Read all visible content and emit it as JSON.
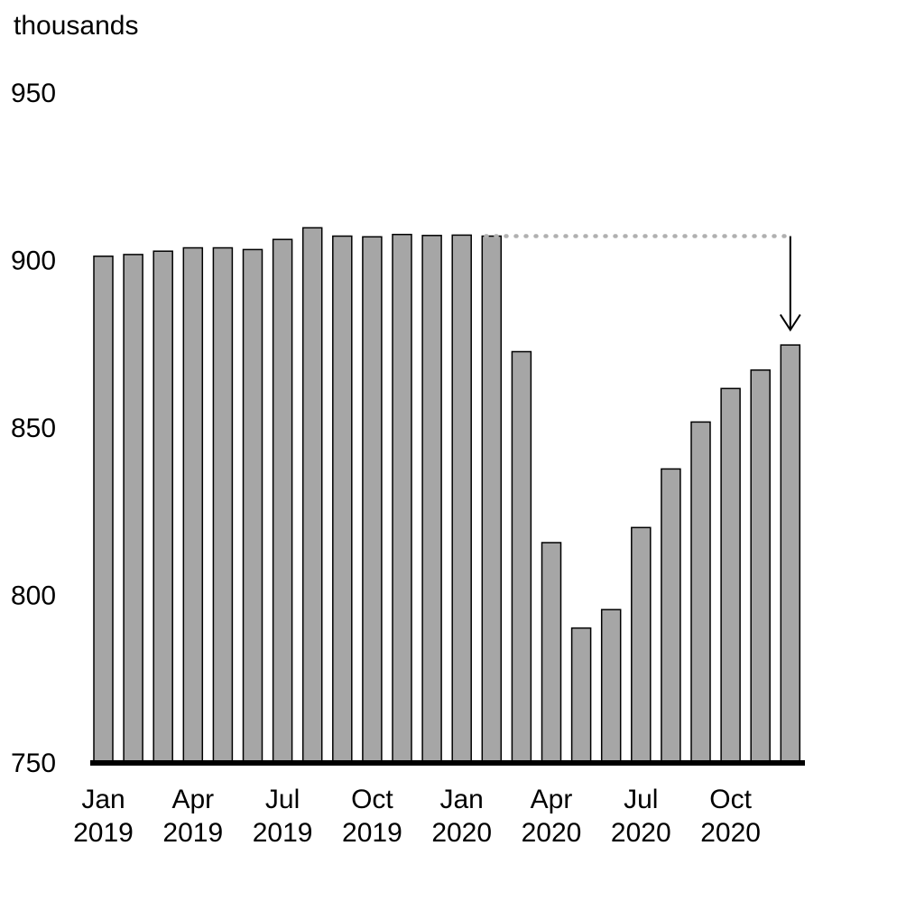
{
  "chart_data": {
    "type": "bar",
    "y_unit_label": "thousands",
    "ylim": [
      750,
      950
    ],
    "yticks": [
      950,
      900,
      850,
      800,
      750
    ],
    "x_tick_labels": [
      {
        "month": "Jan",
        "year": "2019",
        "index": 0
      },
      {
        "month": "Apr",
        "year": "2019",
        "index": 3
      },
      {
        "month": "Jul",
        "year": "2019",
        "index": 6
      },
      {
        "month": "Oct",
        "year": "2019",
        "index": 9
      },
      {
        "month": "Jan",
        "year": "2020",
        "index": 12
      },
      {
        "month": "Apr",
        "year": "2020",
        "index": 15
      },
      {
        "month": "Jul",
        "year": "2020",
        "index": 18
      },
      {
        "month": "Oct",
        "year": "2020",
        "index": 21
      }
    ],
    "categories": [
      "Jan 2019",
      "Feb 2019",
      "Mar 2019",
      "Apr 2019",
      "May 2019",
      "Jun 2019",
      "Jul 2019",
      "Aug 2019",
      "Sep 2019",
      "Oct 2019",
      "Nov 2019",
      "Dec 2019",
      "Jan 2020",
      "Feb 2020",
      "Mar 2020",
      "Apr 2020",
      "May 2020",
      "Jun 2020",
      "Jul 2020",
      "Aug 2020",
      "Sep 2020",
      "Oct 2020",
      "Nov 2020",
      "Dec 2020"
    ],
    "values": [
      901,
      901.5,
      902.5,
      903.5,
      903.5,
      903,
      906,
      909.5,
      907,
      906.8,
      907.5,
      907.2,
      907.3,
      907,
      872.5,
      815.5,
      790,
      795.5,
      820,
      837.5,
      851.5,
      861.5,
      867,
      874.5
    ],
    "bar_color": "#a6a6a6",
    "reference_line": {
      "value": 907,
      "style": "dotted",
      "color": "#b0b0b0",
      "from_index": 13,
      "to_index": 23
    },
    "arrow": {
      "index": 23,
      "from_value": 907,
      "to_value": 879
    },
    "grid": false
  }
}
